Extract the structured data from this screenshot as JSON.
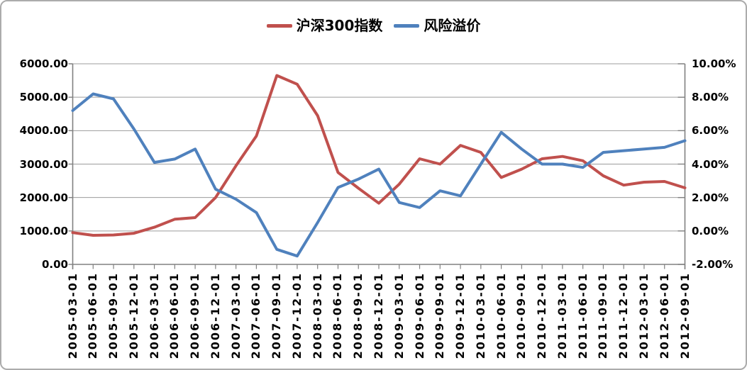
{
  "legend": [
    {
      "label": "沪深300指数",
      "color": "#C0504D"
    },
    {
      "label": "风险溢价",
      "color": "#4F81BD"
    }
  ],
  "colors": {
    "series_red": "#C0504D",
    "series_blue": "#4F81BD",
    "gridline": "#9C9C9C",
    "axis": "#808080",
    "text": "#000000",
    "frame_border": "#ABABAB",
    "background": "#FFFFFF"
  },
  "chart_data": {
    "type": "line",
    "title": "",
    "grid": true,
    "legend_position": "top-center",
    "categories": [
      "2005-03-01",
      "2005-06-01",
      "2005-09-01",
      "2005-12-01",
      "2006-03-01",
      "2006-06-01",
      "2006-09-01",
      "2006-12-01",
      "2007-03-01",
      "2007-06-01",
      "2007-09-01",
      "2007-12-01",
      "2008-03-01",
      "2008-06-01",
      "2008-09-01",
      "2008-12-01",
      "2009-03-01",
      "2009-06-01",
      "2009-09-01",
      "2009-12-01",
      "2010-03-01",
      "2010-06-01",
      "2010-09-01",
      "2010-12-01",
      "2011-03-01",
      "2011-06-01",
      "2011-09-01",
      "2011-12-01",
      "2012-03-01",
      "2012-06-01",
      "2012-09-01"
    ],
    "series": [
      {
        "name": "沪深300指数",
        "axis": "left",
        "color": "#C0504D",
        "values": [
          950,
          870,
          880,
          930,
          1110,
          1350,
          1400,
          2000,
          2950,
          3840,
          5650,
          5390,
          4450,
          2750,
          2280,
          1830,
          2400,
          3160,
          3000,
          3560,
          3350,
          2600,
          2850,
          3160,
          3230,
          3100,
          2650,
          2370,
          2460,
          2480,
          2290
        ]
      },
      {
        "name": "风险溢价",
        "axis": "right",
        "color": "#4F81BD",
        "values": [
          7.2,
          8.2,
          7.9,
          6.1,
          4.1,
          4.3,
          4.9,
          2.5,
          1.9,
          1.1,
          -1.1,
          -1.5,
          0.5,
          2.6,
          3.1,
          3.7,
          1.7,
          1.4,
          2.4,
          2.1,
          4.0,
          5.9,
          4.9,
          4.0,
          4.0,
          3.8,
          4.7,
          4.8,
          4.9,
          5.0,
          5.4
        ]
      }
    ],
    "left_axis": {
      "min": 0,
      "max": 6000,
      "step": 1000,
      "tick_labels": [
        "6000.00",
        "5000.00",
        "4000.00",
        "3000.00",
        "2000.00",
        "1000.00",
        "0.00"
      ]
    },
    "right_axis": {
      "min": -2,
      "max": 10,
      "step": 2,
      "tick_labels": [
        "10.00%",
        "8.00%",
        "6.00%",
        "4.00%",
        "2.00%",
        "0.00%",
        "-2.00%"
      ]
    }
  }
}
